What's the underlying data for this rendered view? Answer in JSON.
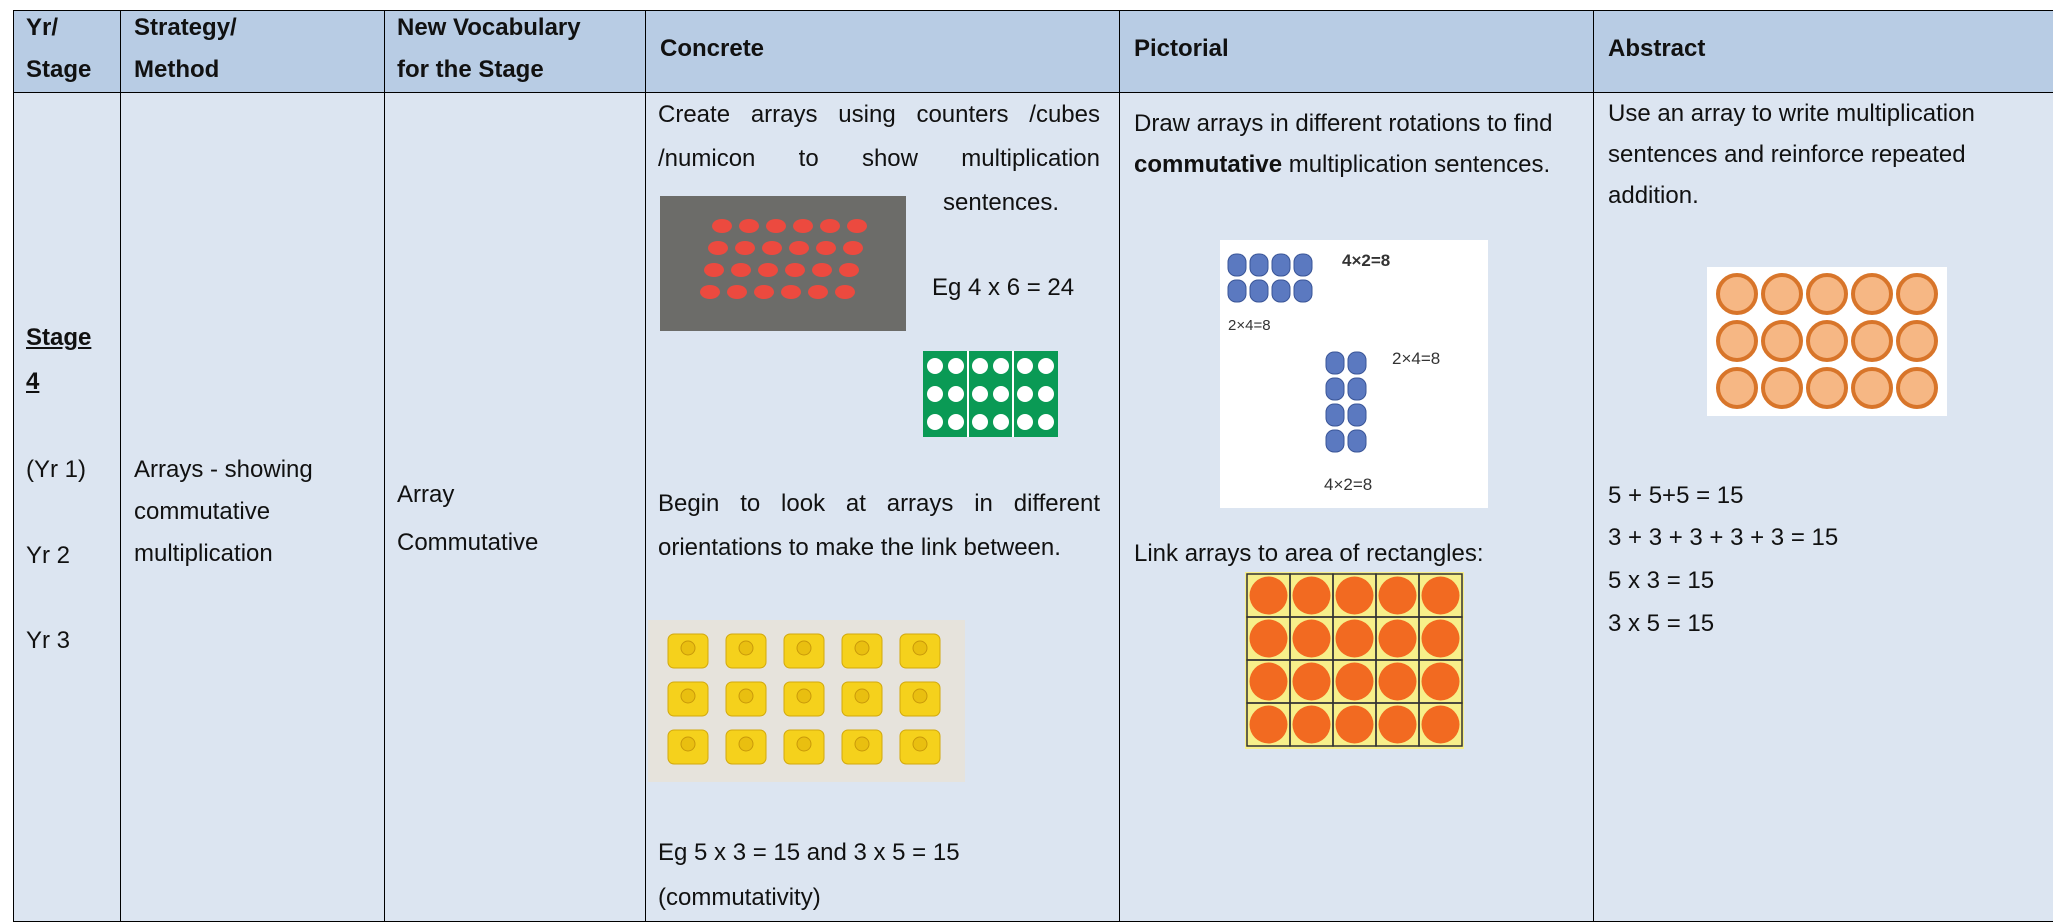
{
  "table": {
    "header": [
      "Yr/\nStage",
      "Strategy/\nMethod",
      "New Vocabulary\nfor the Stage",
      "Concrete",
      "Pictorial",
      "Abstract"
    ],
    "row": {
      "stage": {
        "title": "Stage",
        "number": "4",
        "years": [
          "(Yr 1)",
          "Yr 2",
          "Yr 3"
        ]
      },
      "strategy": "Arrays - showing\ncommutative\nmultiplication",
      "vocabulary": [
        "Array",
        "Commutative"
      ],
      "concrete": {
        "intro": "Create arrays using counters /cubes /numicon to show multiplication sentences.",
        "example1": "Eg 4 x 6 = 24",
        "text2": "Begin to look at arrays in different orientations to make the link between.",
        "example2": "Eg 5 x 3 = 15 and 3 x 5 = 15",
        "note": "(commutativity)"
      },
      "pictorial": {
        "text_before": "Draw arrays in different rotations to find ",
        "bold": "commutative",
        "text_after": " multiplication sentences.",
        "image_labels": [
          "4×2=8",
          "2×4=8",
          "2×4=8",
          "4×2=8"
        ],
        "text2": "Link arrays to area of rectangles:"
      },
      "abstract": {
        "text": "Use an array to write multiplication sentences and reinforce repeated addition.",
        "equations": [
          "5 + 5+5 = 15",
          "3 + 3 + 3 + 3 + 3 = 15",
          "5 x 3 = 15",
          "3 x 5 = 15"
        ]
      }
    }
  }
}
